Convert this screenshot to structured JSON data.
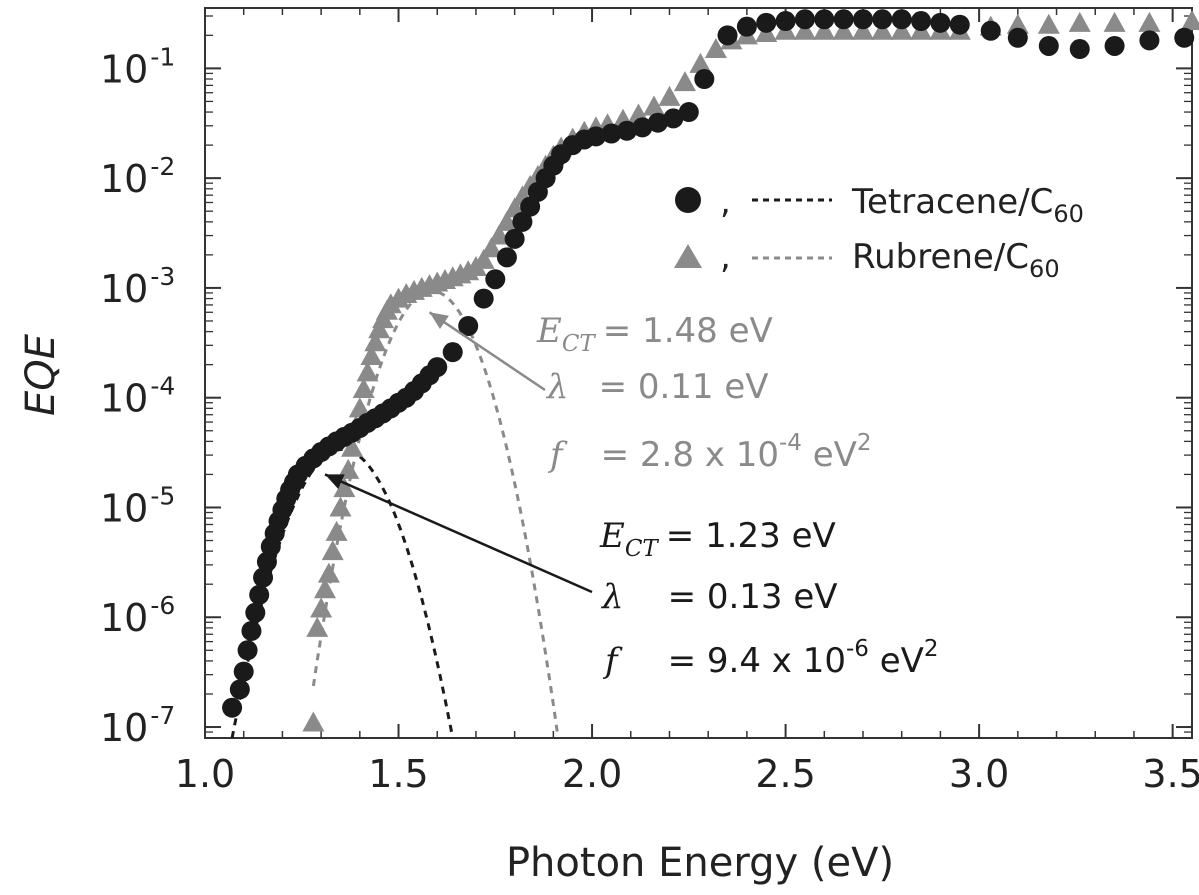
{
  "chart_data": {
    "type": "scatter",
    "xlabel": "Photon Energy (eV)",
    "ylabel": "EQE",
    "xlim": [
      1.0,
      3.55
    ],
    "ylim_log10": [
      -7.1,
      -0.45
    ],
    "y_scale": "log",
    "grid": false,
    "legend_position": "top-right",
    "x_ticks": [
      {
        "value": 1.0,
        "label": "1.0"
      },
      {
        "value": 1.5,
        "label": "1.5"
      },
      {
        "value": 2.0,
        "label": "2.0"
      },
      {
        "value": 2.5,
        "label": "2.5"
      },
      {
        "value": 3.0,
        "label": "3.0"
      },
      {
        "value": 3.5,
        "label": "3.5"
      }
    ],
    "y_ticks": [
      {
        "exp": -7,
        "base": "10",
        "sup": "-7"
      },
      {
        "exp": -6,
        "base": "10",
        "sup": "-6"
      },
      {
        "exp": -5,
        "base": "10",
        "sup": "-5"
      },
      {
        "exp": -4,
        "base": "10",
        "sup": "-4"
      },
      {
        "exp": -3,
        "base": "10",
        "sup": "-3"
      },
      {
        "exp": -2,
        "base": "10",
        "sup": "-2"
      },
      {
        "exp": -1,
        "base": "10",
        "sup": "-1"
      }
    ],
    "colors": {
      "tetracene": "#1a1a1a",
      "rubrene": "#8a8a8a",
      "axis": "#333333"
    },
    "series": [
      {
        "name": "Tetracene/C60",
        "marker": "circle",
        "points": [
          [
            1.07,
            1.5e-07
          ],
          [
            1.09,
            2.2e-07
          ],
          [
            1.1,
            3.2e-07
          ],
          [
            1.11,
            5e-07
          ],
          [
            1.12,
            7.5e-07
          ],
          [
            1.13,
            1.1e-06
          ],
          [
            1.14,
            1.6e-06
          ],
          [
            1.15,
            2.3e-06
          ],
          [
            1.16,
            3.2e-06
          ],
          [
            1.17,
            4.4e-06
          ],
          [
            1.18,
            5.8e-06
          ],
          [
            1.19,
            7.5e-06
          ],
          [
            1.2,
            9.5e-06
          ],
          [
            1.21,
            1.2e-05
          ],
          [
            1.22,
            1.45e-05
          ],
          [
            1.23,
            1.7e-05
          ],
          [
            1.24,
            2e-05
          ],
          [
            1.26,
            2.4e-05
          ],
          [
            1.28,
            2.8e-05
          ],
          [
            1.3,
            3.2e-05
          ],
          [
            1.32,
            3.6e-05
          ],
          [
            1.34,
            4e-05
          ],
          [
            1.36,
            4.4e-05
          ],
          [
            1.38,
            4.8e-05
          ],
          [
            1.4,
            5.3e-05
          ],
          [
            1.42,
            5.9e-05
          ],
          [
            1.44,
            6.5e-05
          ],
          [
            1.46,
            7.2e-05
          ],
          [
            1.48,
            8e-05
          ],
          [
            1.5,
            9e-05
          ],
          [
            1.52,
            0.0001
          ],
          [
            1.54,
            0.000115
          ],
          [
            1.56,
            0.000135
          ],
          [
            1.58,
            0.00016
          ],
          [
            1.6,
            0.00019
          ],
          [
            1.64,
            0.00026
          ],
          [
            1.68,
            0.00045
          ],
          [
            1.72,
            0.0008
          ],
          [
            1.75,
            0.0012
          ],
          [
            1.78,
            0.0019
          ],
          [
            1.8,
            0.0028
          ],
          [
            1.82,
            0.004
          ],
          [
            1.84,
            0.0055
          ],
          [
            1.86,
            0.0075
          ],
          [
            1.88,
            0.01
          ],
          [
            1.9,
            0.013
          ],
          [
            1.92,
            0.0165
          ],
          [
            1.95,
            0.02
          ],
          [
            1.98,
            0.0225
          ],
          [
            2.01,
            0.024
          ],
          [
            2.05,
            0.0255
          ],
          [
            2.09,
            0.027
          ],
          [
            2.13,
            0.029
          ],
          [
            2.17,
            0.032
          ],
          [
            2.21,
            0.035
          ],
          [
            2.25,
            0.04
          ],
          [
            2.29,
            0.08
          ],
          [
            2.35,
            0.2
          ],
          [
            2.4,
            0.24
          ],
          [
            2.45,
            0.26
          ],
          [
            2.5,
            0.27
          ],
          [
            2.55,
            0.28
          ],
          [
            2.6,
            0.28
          ],
          [
            2.65,
            0.28
          ],
          [
            2.7,
            0.28
          ],
          [
            2.75,
            0.28
          ],
          [
            2.8,
            0.28
          ],
          [
            2.85,
            0.27
          ],
          [
            2.9,
            0.26
          ],
          [
            2.95,
            0.25
          ],
          [
            3.03,
            0.22
          ],
          [
            3.1,
            0.19
          ],
          [
            3.18,
            0.16
          ],
          [
            3.26,
            0.15
          ],
          [
            3.35,
            0.16
          ],
          [
            3.44,
            0.18
          ],
          [
            3.53,
            0.19
          ]
        ]
      },
      {
        "name": "Rubrene/C60",
        "marker": "triangle",
        "points": [
          [
            1.28,
            1.1e-07
          ],
          [
            1.29,
            8e-07
          ],
          [
            1.3,
            1.2e-06
          ],
          [
            1.31,
            1.8e-06
          ],
          [
            1.32,
            2.5e-06
          ],
          [
            1.33,
            4e-06
          ],
          [
            1.34,
            6e-06
          ],
          [
            1.35,
            1e-05
          ],
          [
            1.36,
            1.5e-05
          ],
          [
            1.37,
            2.2e-05
          ],
          [
            1.38,
            3.5e-05
          ],
          [
            1.39,
            5.5e-05
          ],
          [
            1.4,
            8e-05
          ],
          [
            1.41,
            0.00012
          ],
          [
            1.42,
            0.00017
          ],
          [
            1.43,
            0.00024
          ],
          [
            1.44,
            0.00032
          ],
          [
            1.45,
            0.00042
          ],
          [
            1.46,
            0.00052
          ],
          [
            1.47,
            0.00062
          ],
          [
            1.48,
            0.00071
          ],
          [
            1.5,
            0.0008
          ],
          [
            1.52,
            0.00088
          ],
          [
            1.54,
            0.00094
          ],
          [
            1.56,
            0.001
          ],
          [
            1.58,
            0.00106
          ],
          [
            1.6,
            0.00112
          ],
          [
            1.62,
            0.00118
          ],
          [
            1.64,
            0.00125
          ],
          [
            1.66,
            0.00133
          ],
          [
            1.68,
            0.00142
          ],
          [
            1.7,
            0.00155
          ],
          [
            1.72,
            0.0018
          ],
          [
            1.74,
            0.0023
          ],
          [
            1.76,
            0.003
          ],
          [
            1.78,
            0.004
          ],
          [
            1.8,
            0.0053
          ],
          [
            1.82,
            0.0068
          ],
          [
            1.84,
            0.0085
          ],
          [
            1.86,
            0.0105
          ],
          [
            1.88,
            0.013
          ],
          [
            1.9,
            0.016
          ],
          [
            1.92,
            0.019
          ],
          [
            1.95,
            0.023
          ],
          [
            1.98,
            0.0265
          ],
          [
            2.01,
            0.029
          ],
          [
            2.04,
            0.031
          ],
          [
            2.08,
            0.034
          ],
          [
            2.12,
            0.038
          ],
          [
            2.16,
            0.045
          ],
          [
            2.2,
            0.055
          ],
          [
            2.24,
            0.075
          ],
          [
            2.28,
            0.11
          ],
          [
            2.32,
            0.15
          ],
          [
            2.36,
            0.18
          ],
          [
            2.4,
            0.2
          ],
          [
            2.45,
            0.21
          ],
          [
            2.5,
            0.22
          ],
          [
            2.55,
            0.22
          ],
          [
            2.6,
            0.22
          ],
          [
            2.65,
            0.22
          ],
          [
            2.7,
            0.22
          ],
          [
            2.75,
            0.22
          ],
          [
            2.8,
            0.22
          ],
          [
            2.85,
            0.22
          ],
          [
            2.9,
            0.22
          ],
          [
            2.95,
            0.22
          ],
          [
            3.03,
            0.24
          ],
          [
            3.1,
            0.25
          ],
          [
            3.18,
            0.25
          ],
          [
            3.26,
            0.26
          ],
          [
            3.35,
            0.26
          ],
          [
            3.44,
            0.26
          ],
          [
            3.55,
            0.27
          ]
        ]
      }
    ],
    "fits": [
      {
        "name": "Tetracene/C60 fit",
        "style": "dashed",
        "ect": 1.23,
        "lambda": 0.13,
        "f": 9.4e-06,
        "x_range": [
          1.07,
          1.64
        ]
      },
      {
        "name": "Rubrene/C60 fit",
        "style": "dashed",
        "ect": 1.48,
        "lambda": 0.11,
        "f": 0.00028,
        "x_range": [
          1.28,
          1.91
        ]
      }
    ],
    "legend": [
      {
        "series": "Tetracene/C60",
        "separator": ",",
        "label_main": "Tetracene/C",
        "label_sub": "60"
      },
      {
        "series": "Rubrene/C60",
        "separator": ",",
        "label_main": "Rubrene/C",
        "label_sub": "60"
      }
    ],
    "annotations": {
      "rubrene": {
        "ect_sym": "E",
        "ect_sub": "CT",
        "ect_val": "= 1.48 eV",
        "lambda_sym": "λ",
        "lambda_val": "= 0.11 eV",
        "f_sym": "f",
        "f_val": "= 2.8 x 10",
        "f_exp": "-4",
        "f_unit": " eV",
        "f_unit_exp": "2",
        "arrow_to": {
          "x": 1.58,
          "y": 0.0006
        }
      },
      "tetracene": {
        "ect_sym": "E",
        "ect_sub": "CT",
        "ect_val": "= 1.23 eV",
        "lambda_sym": "λ",
        "lambda_val": "= 0.13 eV",
        "f_sym": "f",
        "f_val": "= 9.4 x 10",
        "f_exp": "-6",
        "f_unit": " eV",
        "f_unit_exp": "2",
        "arrow_to": {
          "x": 1.31,
          "y": 2e-05
        }
      }
    }
  }
}
